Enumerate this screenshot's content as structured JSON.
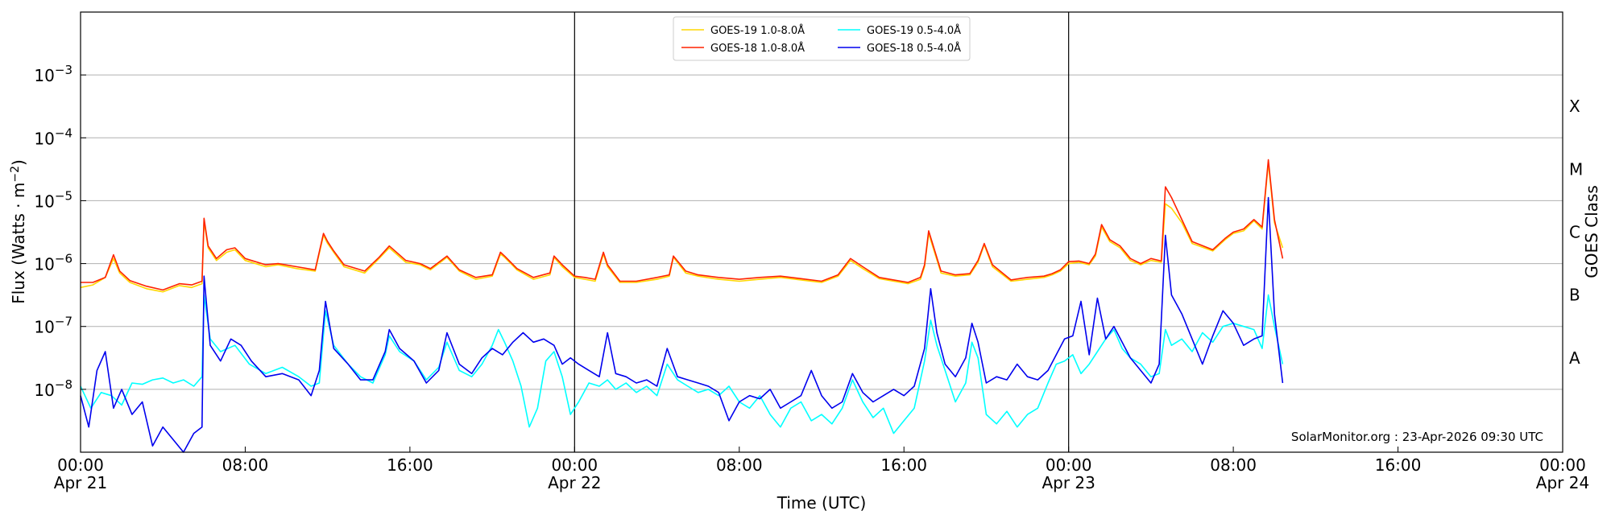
{
  "chart_data": {
    "type": "line",
    "xlabel": "Time (UTC)",
    "ylabel_main": "Flux (Watts · m",
    "ylabel_sup": "−2",
    "ylabel_close": ")",
    "right_label": "GOES Class",
    "annotation": "SolarMonitor.org : 23-Apr-2026 09:30 UTC",
    "x_range_hours": [
      0,
      72
    ],
    "y_range_log10": [
      -9.0,
      -2.0
    ],
    "x_ticks": [
      {
        "hour": 0,
        "time": "00:00",
        "date": "Apr 21"
      },
      {
        "hour": 8,
        "time": "08:00",
        "date": ""
      },
      {
        "hour": 16,
        "time": "16:00",
        "date": ""
      },
      {
        "hour": 24,
        "time": "00:00",
        "date": "Apr 22"
      },
      {
        "hour": 32,
        "time": "08:00",
        "date": ""
      },
      {
        "hour": 40,
        "time": "16:00",
        "date": ""
      },
      {
        "hour": 48,
        "time": "00:00",
        "date": "Apr 23"
      },
      {
        "hour": 56,
        "time": "08:00",
        "date": ""
      },
      {
        "hour": 64,
        "time": "16:00",
        "date": ""
      },
      {
        "hour": 72,
        "time": "00:00",
        "date": "Apr 24"
      }
    ],
    "y_ticks": [
      {
        "exp": -8,
        "base": "10",
        "sup": "−8"
      },
      {
        "exp": -7,
        "base": "10",
        "sup": "−7"
      },
      {
        "exp": -6,
        "base": "10",
        "sup": "−6"
      },
      {
        "exp": -5,
        "base": "10",
        "sup": "−5"
      },
      {
        "exp": -4,
        "base": "10",
        "sup": "−4"
      },
      {
        "exp": -3,
        "base": "10",
        "sup": "−3"
      }
    ],
    "class_labels": [
      {
        "exp": -7.5,
        "label": "A"
      },
      {
        "exp": -6.5,
        "label": "B"
      },
      {
        "exp": -5.5,
        "label": "C"
      },
      {
        "exp": -4.5,
        "label": "M"
      },
      {
        "exp": -3.5,
        "label": "X"
      }
    ],
    "day_lines_hours": [
      24,
      48
    ],
    "legend": [
      {
        "name": "GOES-19 1.0-8.0Å",
        "color": "#ffd700"
      },
      {
        "name": "GOES-18 1.0-8.0Å",
        "color": "#ff2200"
      },
      {
        "name": "GOES-19 0.5-4.0Å",
        "color": "#00ffff"
      },
      {
        "name": "GOES-18 0.5-4.0Å",
        "color": "#0000ee"
      }
    ],
    "series": [
      {
        "name": "GOES-19 1.0-8.0Å",
        "color": "#ffd700",
        "x_hours": [
          0,
          0.6,
          1.2,
          1.6,
          1.9,
          2.4,
          3.2,
          4.0,
          4.8,
          5.4,
          5.9,
          6.0,
          6.2,
          6.6,
          7.1,
          7.5,
          8.0,
          9.0,
          9.6,
          10.5,
          11.4,
          11.8,
          12.0,
          12.3,
          12.8,
          13.8,
          14.5,
          15.0,
          15.8,
          16.5,
          17.0,
          17.4,
          17.8,
          18.4,
          19.2,
          20.0,
          20.4,
          20.6,
          21.2,
          22.0,
          22.8,
          23.0,
          23.4,
          24.0,
          24.5,
          25.0,
          25.4,
          25.6,
          26.2,
          27.0,
          28.0,
          28.6,
          28.8,
          29.4,
          30.0,
          31.0,
          32.0,
          33.0,
          34.0,
          35.0,
          36.0,
          36.8,
          37.4,
          38.0,
          38.8,
          39.5,
          40.2,
          40.8,
          41.0,
          41.2,
          41.8,
          42.5,
          43.2,
          43.6,
          43.9,
          44.3,
          45.2,
          46.0,
          46.8,
          47.2,
          47.6,
          48.0,
          48.5,
          49.0,
          49.3,
          49.6,
          50.0,
          50.5,
          51.0,
          51.5,
          52.0,
          52.5,
          52.7,
          53.0,
          53.5,
          54.0,
          55.0,
          55.6,
          56.0,
          56.5,
          57.0,
          57.4,
          57.7,
          58.0,
          58.4
        ],
        "y_log": [
          -6.38,
          -6.34,
          -6.22,
          -5.92,
          -6.15,
          -6.3,
          -6.4,
          -6.45,
          -6.35,
          -6.38,
          -6.32,
          -5.32,
          -5.75,
          -5.95,
          -5.82,
          -5.78,
          -5.95,
          -6.05,
          -6.02,
          -6.08,
          -6.12,
          -5.55,
          -5.68,
          -5.82,
          -6.05,
          -6.15,
          -5.92,
          -5.75,
          -5.98,
          -6.02,
          -6.1,
          -6.0,
          -5.9,
          -6.12,
          -6.25,
          -6.2,
          -5.85,
          -5.9,
          -6.1,
          -6.25,
          -6.18,
          -5.9,
          -6.05,
          -6.22,
          -6.25,
          -6.28,
          -5.85,
          -6.05,
          -6.3,
          -6.3,
          -6.25,
          -6.2,
          -5.9,
          -6.15,
          -6.2,
          -6.25,
          -6.28,
          -6.25,
          -6.22,
          -6.26,
          -6.3,
          -6.2,
          -5.95,
          -6.08,
          -6.24,
          -6.28,
          -6.32,
          -6.25,
          -6.05,
          -5.52,
          -6.15,
          -6.2,
          -6.18,
          -5.98,
          -5.7,
          -6.05,
          -6.28,
          -6.25,
          -6.22,
          -6.18,
          -6.12,
          -6.0,
          -5.98,
          -6.02,
          -5.88,
          -5.42,
          -5.65,
          -5.75,
          -5.95,
          -6.02,
          -5.95,
          -5.98,
          -5.05,
          -5.12,
          -5.35,
          -5.68,
          -5.8,
          -5.62,
          -5.52,
          -5.48,
          -5.32,
          -5.45,
          -4.4,
          -5.35,
          -5.75
        ]
      },
      {
        "name": "GOES-18 1.0-8.0Å",
        "color": "#ff2200",
        "x_hours": [
          0,
          0.6,
          1.2,
          1.6,
          1.9,
          2.4,
          3.2,
          4.0,
          4.8,
          5.4,
          5.9,
          6.0,
          6.2,
          6.6,
          7.1,
          7.5,
          8.0,
          9.0,
          9.6,
          10.5,
          11.4,
          11.8,
          12.0,
          12.3,
          12.8,
          13.8,
          14.5,
          15.0,
          15.8,
          16.5,
          17.0,
          17.4,
          17.8,
          18.4,
          19.2,
          20.0,
          20.4,
          20.6,
          21.2,
          22.0,
          22.8,
          23.0,
          23.4,
          24.0,
          24.5,
          25.0,
          25.4,
          25.6,
          26.2,
          27.0,
          28.0,
          28.6,
          28.8,
          29.4,
          30.0,
          31.0,
          32.0,
          33.0,
          34.0,
          35.0,
          36.0,
          36.8,
          37.4,
          38.0,
          38.8,
          39.5,
          40.2,
          40.8,
          41.0,
          41.2,
          41.8,
          42.5,
          43.2,
          43.6,
          43.9,
          44.3,
          45.2,
          46.0,
          46.8,
          47.2,
          47.6,
          48.0,
          48.5,
          49.0,
          49.3,
          49.6,
          50.0,
          50.5,
          51.0,
          51.5,
          52.0,
          52.5,
          52.7,
          53.0,
          53.5,
          54.0,
          55.0,
          55.6,
          56.0,
          56.5,
          57.0,
          57.4,
          57.7,
          58.0,
          58.4
        ],
        "y_log": [
          -6.3,
          -6.3,
          -6.22,
          -5.86,
          -6.12,
          -6.27,
          -6.36,
          -6.42,
          -6.32,
          -6.34,
          -6.28,
          -5.28,
          -5.72,
          -5.92,
          -5.78,
          -5.75,
          -5.92,
          -6.02,
          -6.0,
          -6.05,
          -6.1,
          -5.52,
          -5.65,
          -5.8,
          -6.02,
          -6.12,
          -5.9,
          -5.72,
          -5.95,
          -6.0,
          -6.08,
          -5.98,
          -5.88,
          -6.1,
          -6.22,
          -6.18,
          -5.82,
          -5.88,
          -6.08,
          -6.22,
          -6.15,
          -5.88,
          -6.02,
          -6.2,
          -6.22,
          -6.25,
          -5.82,
          -6.02,
          -6.28,
          -6.28,
          -6.22,
          -6.18,
          -5.88,
          -6.12,
          -6.18,
          -6.22,
          -6.25,
          -6.22,
          -6.2,
          -6.24,
          -6.28,
          -6.18,
          -5.92,
          -6.05,
          -6.22,
          -6.26,
          -6.3,
          -6.22,
          -6.02,
          -5.48,
          -6.12,
          -6.18,
          -6.16,
          -5.95,
          -5.68,
          -6.02,
          -6.26,
          -6.22,
          -6.2,
          -6.16,
          -6.1,
          -5.97,
          -5.96,
          -6.0,
          -5.85,
          -5.38,
          -5.62,
          -5.72,
          -5.92,
          -6.0,
          -5.92,
          -5.96,
          -4.78,
          -4.95,
          -5.3,
          -5.65,
          -5.78,
          -5.6,
          -5.5,
          -5.45,
          -5.3,
          -5.42,
          -4.35,
          -5.3,
          -5.92
        ]
      },
      {
        "name": "GOES-19 0.5-4.0Å",
        "color": "#00ffff",
        "x_hours": [
          0,
          0.5,
          1.0,
          1.5,
          2.0,
          2.5,
          3.0,
          3.5,
          4.0,
          4.5,
          5.0,
          5.5,
          5.9,
          6.0,
          6.3,
          6.8,
          7.5,
          8.2,
          9.0,
          9.8,
          10.6,
          11.2,
          11.6,
          11.9,
          12.3,
          13.0,
          13.6,
          14.2,
          14.8,
          15.0,
          15.5,
          16.2,
          16.8,
          17.4,
          17.8,
          18.4,
          19.0,
          19.5,
          20.0,
          20.3,
          20.6,
          21.0,
          21.4,
          21.8,
          22.2,
          22.6,
          23.0,
          23.4,
          23.8,
          24.2,
          24.7,
          25.2,
          25.6,
          26.0,
          26.5,
          27.0,
          27.5,
          28.0,
          28.5,
          29.0,
          29.5,
          30.0,
          30.5,
          31.0,
          31.5,
          32.0,
          32.5,
          33.0,
          33.5,
          34.0,
          34.5,
          35.0,
          35.5,
          36.0,
          36.5,
          37.0,
          37.5,
          38.0,
          38.5,
          39.0,
          39.5,
          40.0,
          40.5,
          41.0,
          41.3,
          41.6,
          42.0,
          42.5,
          43.0,
          43.3,
          43.6,
          44.0,
          44.5,
          45.0,
          45.5,
          46.0,
          46.5,
          47.0,
          47.4,
          47.8,
          48.2,
          48.6,
          49.0,
          49.4,
          49.8,
          50.2,
          50.6,
          51.0,
          51.5,
          52.0,
          52.4,
          52.7,
          53.0,
          53.5,
          54.0,
          54.5,
          55.0,
          55.5,
          56.0,
          56.5,
          57.0,
          57.4,
          57.7,
          58.0,
          58.4
        ],
        "y_log": [
          -7.95,
          -8.3,
          -8.05,
          -8.1,
          -8.25,
          -7.9,
          -7.92,
          -7.85,
          -7.82,
          -7.9,
          -7.85,
          -7.95,
          -7.8,
          -6.5,
          -7.2,
          -7.4,
          -7.3,
          -7.6,
          -7.75,
          -7.65,
          -7.8,
          -7.95,
          -7.9,
          -6.75,
          -7.3,
          -7.6,
          -7.8,
          -7.9,
          -7.45,
          -7.15,
          -7.4,
          -7.55,
          -7.85,
          -7.65,
          -7.25,
          -7.7,
          -7.8,
          -7.6,
          -7.3,
          -7.05,
          -7.25,
          -7.55,
          -7.95,
          -8.6,
          -8.3,
          -7.55,
          -7.4,
          -7.8,
          -8.4,
          -8.2,
          -7.9,
          -7.95,
          -7.85,
          -8.0,
          -7.9,
          -8.05,
          -7.95,
          -8.1,
          -7.6,
          -7.85,
          -7.95,
          -8.05,
          -8.0,
          -8.1,
          -7.95,
          -8.2,
          -8.3,
          -8.1,
          -8.4,
          -8.6,
          -8.3,
          -8.2,
          -8.5,
          -8.4,
          -8.55,
          -8.3,
          -7.85,
          -8.2,
          -8.45,
          -8.3,
          -8.7,
          -8.5,
          -8.3,
          -7.55,
          -6.9,
          -7.3,
          -7.7,
          -8.2,
          -7.9,
          -7.25,
          -7.5,
          -8.4,
          -8.55,
          -8.35,
          -8.6,
          -8.4,
          -8.3,
          -7.9,
          -7.6,
          -7.55,
          -7.45,
          -7.75,
          -7.6,
          -7.4,
          -7.2,
          -7.05,
          -7.35,
          -7.5,
          -7.6,
          -7.8,
          -7.75,
          -7.05,
          -7.3,
          -7.2,
          -7.4,
          -7.1,
          -7.25,
          -7.0,
          -6.95,
          -7.0,
          -7.05,
          -7.35,
          -6.5,
          -7.0,
          -7.6
        ]
      },
      {
        "name": "GOES-18 0.5-4.0Å",
        "color": "#0000ee",
        "x_hours": [
          0,
          0.4,
          0.8,
          1.2,
          1.6,
          2.0,
          2.5,
          3.0,
          3.5,
          4.0,
          4.5,
          5.0,
          5.5,
          5.9,
          6.0,
          6.3,
          6.8,
          7.3,
          7.8,
          8.3,
          9.0,
          9.8,
          10.6,
          11.2,
          11.6,
          11.9,
          12.3,
          13.0,
          13.6,
          14.2,
          14.8,
          15.0,
          15.5,
          16.2,
          16.8,
          17.4,
          17.8,
          18.4,
          19.0,
          19.5,
          20.0,
          20.5,
          21.0,
          21.5,
          22.0,
          22.5,
          23.0,
          23.4,
          23.8,
          24.2,
          24.7,
          25.2,
          25.6,
          26.0,
          26.5,
          27.0,
          27.5,
          28.0,
          28.5,
          29.0,
          29.5,
          30.0,
          30.5,
          31.0,
          31.5,
          32.0,
          32.5,
          33.0,
          33.5,
          34.0,
          34.5,
          35.0,
          35.5,
          36.0,
          36.5,
          37.0,
          37.5,
          38.0,
          38.5,
          39.0,
          39.5,
          40.0,
          40.5,
          41.0,
          41.3,
          41.6,
          42.0,
          42.5,
          43.0,
          43.3,
          43.6,
          44.0,
          44.5,
          45.0,
          45.5,
          46.0,
          46.5,
          47.0,
          47.4,
          47.8,
          48.2,
          48.6,
          49.0,
          49.4,
          49.8,
          50.2,
          50.6,
          51.0,
          51.5,
          52.0,
          52.4,
          52.7,
          53.0,
          53.5,
          54.0,
          54.5,
          55.0,
          55.5,
          56.0,
          56.5,
          57.0,
          57.4,
          57.7,
          58.0,
          58.4
        ],
        "y_log": [
          -8.1,
          -8.6,
          -7.7,
          -7.4,
          -8.3,
          -8.0,
          -8.4,
          -8.2,
          -8.9,
          -8.6,
          -8.8,
          -9.0,
          -8.7,
          -8.6,
          -6.2,
          -7.3,
          -7.55,
          -7.2,
          -7.3,
          -7.55,
          -7.8,
          -7.75,
          -7.85,
          -8.1,
          -7.7,
          -6.6,
          -7.35,
          -7.6,
          -7.85,
          -7.85,
          -7.4,
          -7.05,
          -7.35,
          -7.55,
          -7.9,
          -7.7,
          -7.1,
          -7.6,
          -7.75,
          -7.5,
          -7.35,
          -7.45,
          -7.25,
          -7.1,
          -7.25,
          -7.2,
          -7.3,
          -7.6,
          -7.5,
          -7.6,
          -7.7,
          -7.8,
          -7.1,
          -7.75,
          -7.8,
          -7.9,
          -7.85,
          -7.95,
          -7.35,
          -7.8,
          -7.85,
          -7.9,
          -7.95,
          -8.05,
          -8.5,
          -8.2,
          -8.1,
          -8.15,
          -8.0,
          -8.3,
          -8.2,
          -8.1,
          -7.7,
          -8.1,
          -8.3,
          -8.2,
          -7.75,
          -8.05,
          -8.2,
          -8.1,
          -8.0,
          -8.1,
          -7.95,
          -7.35,
          -6.4,
          -7.1,
          -7.6,
          -7.8,
          -7.5,
          -6.95,
          -7.25,
          -7.9,
          -7.8,
          -7.85,
          -7.6,
          -7.8,
          -7.85,
          -7.7,
          -7.45,
          -7.2,
          -7.15,
          -6.6,
          -7.45,
          -6.55,
          -7.2,
          -7.0,
          -7.25,
          -7.5,
          -7.7,
          -7.9,
          -7.6,
          -5.55,
          -6.5,
          -6.8,
          -7.2,
          -7.6,
          -7.15,
          -6.75,
          -6.95,
          -7.3,
          -7.2,
          -7.15,
          -4.95,
          -6.8,
          -7.9
        ]
      }
    ]
  }
}
